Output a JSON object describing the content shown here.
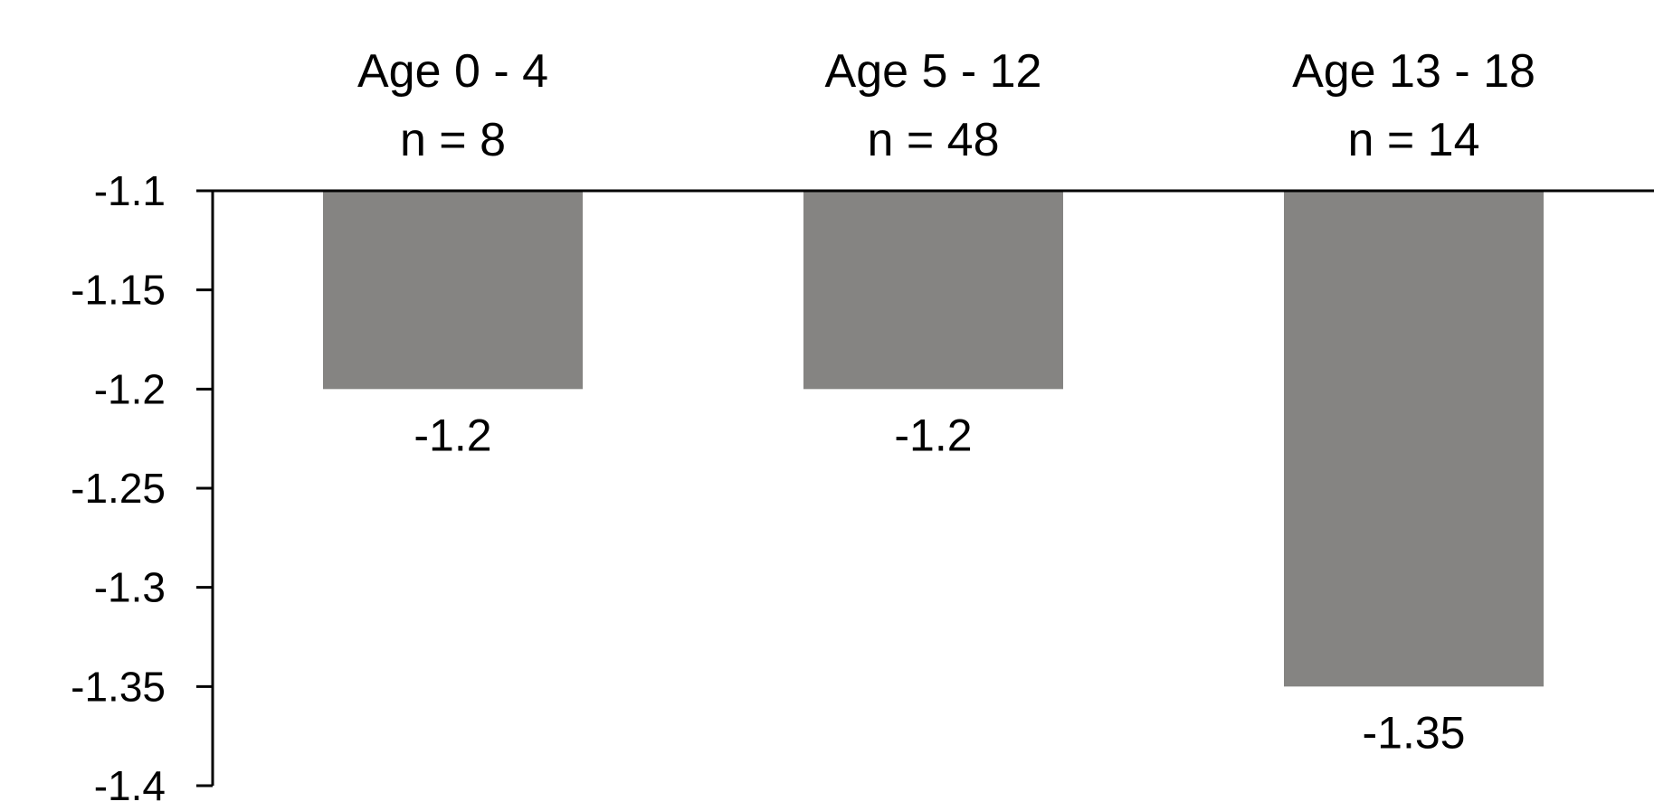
{
  "chart_data": {
    "type": "bar",
    "title": "",
    "xlabel": "",
    "ylabel": "",
    "categories": [
      {
        "line1": "Age 0 - 4",
        "line2": "n = 8"
      },
      {
        "line1": "Age 5 - 12",
        "line2": "n = 48"
      },
      {
        "line1": "Age 13 - 18",
        "line2": "n = 14"
      }
    ],
    "values": [
      -1.2,
      -1.2,
      -1.35
    ],
    "data_labels": [
      "-1.2",
      "-1.2",
      "-1.35"
    ],
    "ylim": [
      -1.4,
      -1.1
    ],
    "yticks": [
      -1.1,
      -1.15,
      -1.2,
      -1.25,
      -1.3,
      -1.35,
      -1.4
    ],
    "ytick_labels": [
      "-1.1",
      "-1.15",
      "-1.2",
      "-1.25",
      "-1.3",
      "-1.35",
      "-1.4"
    ],
    "bars_hang_from": -1.1,
    "category_labels_position": "top",
    "grid": false,
    "legend": "none",
    "bar_color": "#858482",
    "axis_color": "#000000"
  }
}
